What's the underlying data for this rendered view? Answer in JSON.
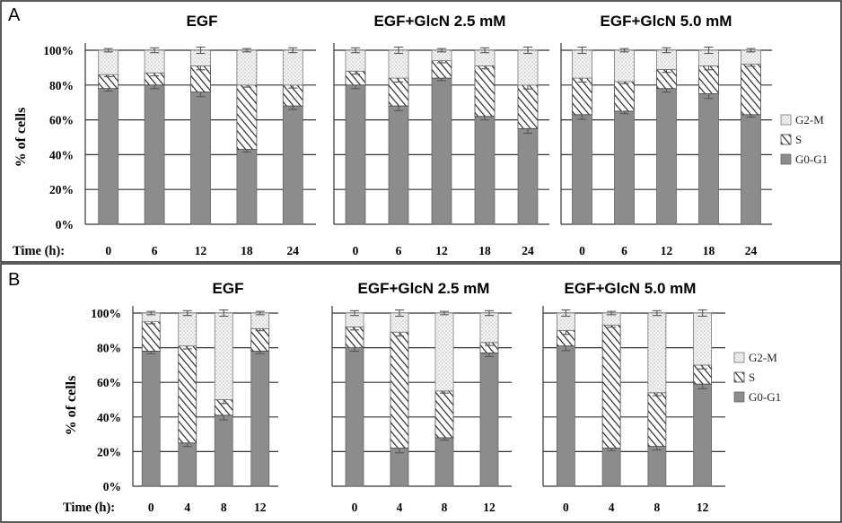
{
  "figure": {
    "panels": [
      {
        "letter": "A"
      },
      {
        "letter": "B"
      }
    ],
    "legend": [
      "G2-M",
      "S",
      "G0-G1"
    ],
    "y_axis_label": "% of cells",
    "x_axis_label": "Time (h):",
    "y_ticks": [
      "0%",
      "20%",
      "40%",
      "60%",
      "80%",
      "100%"
    ],
    "colors": {
      "G0-G1": "#8c8c8c",
      "S": "#ffffff",
      "G2-M": "#f2f2f2",
      "hatch": "#333333"
    }
  },
  "chart_data": [
    {
      "type": "bar",
      "stacked": true,
      "panel": "A",
      "title": "EGF",
      "xlabel": "Time (h):",
      "ylabel": "% of cells",
      "categories": [
        "0",
        "6",
        "12",
        "18",
        "24"
      ],
      "ylim": [
        0,
        100
      ],
      "series": [
        {
          "name": "G0-G1",
          "values": [
            78,
            80,
            76,
            43,
            68
          ]
        },
        {
          "name": "S",
          "values": [
            8,
            7,
            15,
            37,
            12
          ]
        },
        {
          "name": "G2-M",
          "values": [
            14,
            13,
            9,
            20,
            20
          ]
        }
      ]
    },
    {
      "type": "bar",
      "stacked": true,
      "panel": "A",
      "title": "EGF+GlcN 2.5 mM",
      "xlabel": "",
      "ylabel": "",
      "categories": [
        "0",
        "6",
        "12",
        "18",
        "24"
      ],
      "ylim": [
        0,
        100
      ],
      "series": [
        {
          "name": "G0-G1",
          "values": [
            80,
            68,
            84,
            62,
            55
          ]
        },
        {
          "name": "S",
          "values": [
            8,
            16,
            10,
            29,
            25
          ]
        },
        {
          "name": "G2-M",
          "values": [
            12,
            16,
            6,
            9,
            20
          ]
        }
      ]
    },
    {
      "type": "bar",
      "stacked": true,
      "panel": "A",
      "title": "EGF+GlcN 5.0 mM",
      "xlabel": "",
      "ylabel": "",
      "categories": [
        "0",
        "6",
        "12",
        "18",
        "24"
      ],
      "ylim": [
        0,
        100
      ],
      "series": [
        {
          "name": "G0-G1",
          "values": [
            63,
            65,
            78,
            75,
            63
          ]
        },
        {
          "name": "S",
          "values": [
            21,
            17,
            11,
            16,
            29
          ]
        },
        {
          "name": "G2-M",
          "values": [
            16,
            18,
            11,
            9,
            8
          ]
        }
      ]
    },
    {
      "type": "bar",
      "stacked": true,
      "panel": "B",
      "title": "EGF",
      "xlabel": "Time (h):",
      "ylabel": "% of cells",
      "categories": [
        "0",
        "4",
        "8",
        "12"
      ],
      "ylim": [
        0,
        100
      ],
      "series": [
        {
          "name": "G0-G1",
          "values": [
            78,
            25,
            41,
            78
          ]
        },
        {
          "name": "S",
          "values": [
            17,
            56,
            9,
            13
          ]
        },
        {
          "name": "G2-M",
          "values": [
            5,
            19,
            50,
            9
          ]
        }
      ]
    },
    {
      "type": "bar",
      "stacked": true,
      "panel": "B",
      "title": "EGF+GlcN 2.5 mM",
      "xlabel": "",
      "ylabel": "",
      "categories": [
        "0",
        "4",
        "8",
        "12"
      ],
      "ylim": [
        0,
        100
      ],
      "series": [
        {
          "name": "G0-G1",
          "values": [
            80,
            22,
            28,
            77
          ]
        },
        {
          "name": "S",
          "values": [
            12,
            67,
            27,
            6
          ]
        },
        {
          "name": "G2-M",
          "values": [
            8,
            11,
            45,
            17
          ]
        }
      ]
    },
    {
      "type": "bar",
      "stacked": true,
      "panel": "B",
      "title": "EGF+GlcN 5.0 mM",
      "xlabel": "",
      "ylabel": "",
      "categories": [
        "0",
        "4",
        "8",
        "12"
      ],
      "ylim": [
        0,
        100
      ],
      "series": [
        {
          "name": "G0-G1",
          "values": [
            81,
            22,
            23,
            59
          ]
        },
        {
          "name": "S",
          "values": [
            9,
            71,
            31,
            11
          ]
        },
        {
          "name": "G2-M",
          "values": [
            10,
            7,
            46,
            30
          ]
        }
      ]
    }
  ]
}
